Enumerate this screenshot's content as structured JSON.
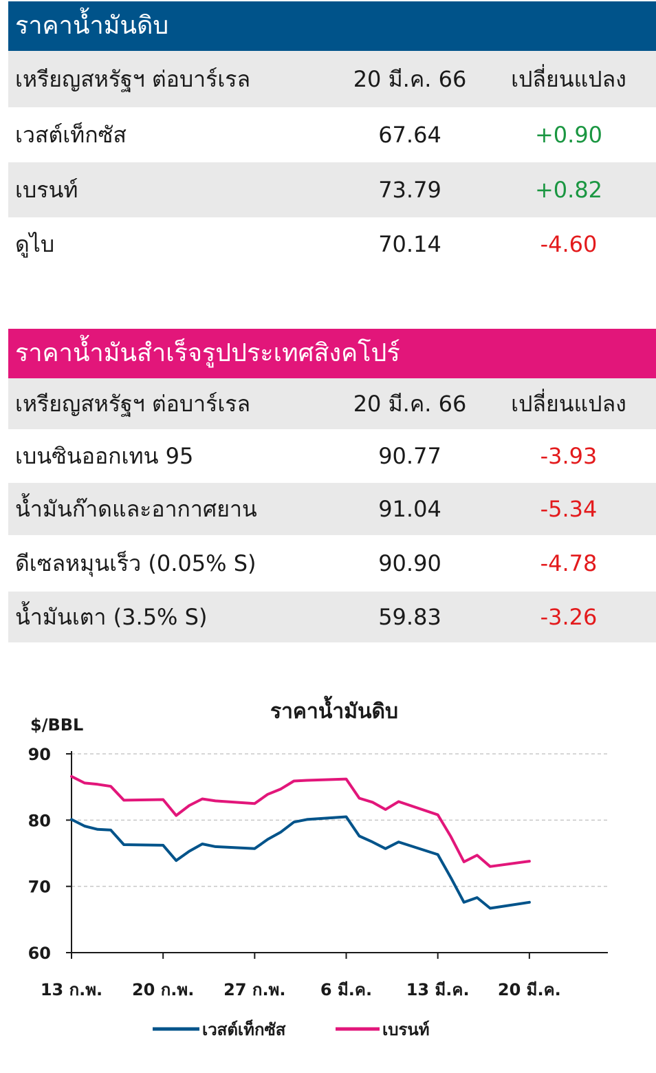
{
  "crude": {
    "title": "ราคาน้ำมันดิบ",
    "header": {
      "unit": "เหรียญสหรัฐฯ ต่อบาร์เรล",
      "date": "20 มี.ค. 66",
      "change": "เปลี่ยนแปลง"
    },
    "rows": [
      {
        "name": "เวสต์เท็กซัส",
        "price": "67.64",
        "change": "+0.90"
      },
      {
        "name": "เบรนท์",
        "price": "73.79",
        "change": "+0.82"
      },
      {
        "name": "ดูไบ",
        "price": "70.14",
        "change": "-4.60"
      }
    ]
  },
  "products": {
    "title": "ราคาน้ำมันสำเร็จรูปประเทศสิงคโปร์",
    "header": {
      "unit": "เหรียญสหรัฐฯ ต่อบาร์เรล",
      "date": "20 มี.ค. 66",
      "change": "เปลี่ยนแปลง"
    },
    "rows": [
      {
        "name": "เบนซินออกเทน 95",
        "price": "90.77",
        "change": "-3.93"
      },
      {
        "name": "น้ำมันก๊าดและอากาศยาน",
        "price": "91.04",
        "change": "-5.34"
      },
      {
        "name": "ดีเซลหมุนเร็ว (0.05% S)",
        "price": "90.90",
        "change": "-4.78"
      },
      {
        "name": "น้ำมันเตา (3.5% S)",
        "price": "59.83",
        "change": "-3.26"
      }
    ]
  },
  "colors": {
    "crude_banner": "#00538a",
    "products_banner": "#e2167a",
    "positive": "#1a9641",
    "negative": "#e31a1c"
  },
  "chart_data": {
    "type": "line",
    "title": "ราคาน้ำมันดิบ",
    "ylabel": "$/BBL",
    "ylim": [
      60,
      90
    ],
    "yticks": [
      60,
      70,
      80,
      90
    ],
    "xlim": [
      "2023-02-13",
      "2023-03-26"
    ],
    "xticks": [
      {
        "date": "2023-02-13",
        "label": "13 ก.พ."
      },
      {
        "date": "2023-02-20",
        "label": "20 ก.พ."
      },
      {
        "date": "2023-02-27",
        "label": "27 ก.พ."
      },
      {
        "date": "2023-03-06",
        "label": "6 มี.ค."
      },
      {
        "date": "2023-03-13",
        "label": "13 มี.ค."
      },
      {
        "date": "2023-03-20",
        "label": "20 มี.ค."
      }
    ],
    "grid": "horizontal dashed",
    "legend": "bottom",
    "x": [
      "2023-02-13",
      "2023-02-14",
      "2023-02-15",
      "2023-02-16",
      "2023-02-17",
      "2023-02-20",
      "2023-02-21",
      "2023-02-22",
      "2023-02-23",
      "2023-02-24",
      "2023-02-27",
      "2023-02-28",
      "2023-03-01",
      "2023-03-02",
      "2023-03-03",
      "2023-03-06",
      "2023-03-07",
      "2023-03-08",
      "2023-03-09",
      "2023-03-10",
      "2023-03-13",
      "2023-03-14",
      "2023-03-15",
      "2023-03-16",
      "2023-03-17",
      "2023-03-20"
    ],
    "series": [
      {
        "name": "เวสต์เท็กซัส",
        "color": "#00538a",
        "values": [
          80.1,
          79.1,
          78.6,
          78.5,
          76.3,
          76.2,
          73.9,
          75.3,
          76.4,
          76.0,
          75.7,
          77.1,
          78.2,
          79.7,
          80.1,
          80.5,
          77.6,
          76.7,
          75.7,
          76.7,
          74.8,
          71.3,
          67.6,
          68.3,
          66.7,
          67.6
        ]
      },
      {
        "name": "เบรนท์",
        "color": "#e2167a",
        "values": [
          86.6,
          85.6,
          85.4,
          85.1,
          83.0,
          83.1,
          80.7,
          82.2,
          83.2,
          82.9,
          82.5,
          83.9,
          84.7,
          85.9,
          86.0,
          86.2,
          83.3,
          82.7,
          81.6,
          82.8,
          80.8,
          77.5,
          73.7,
          74.7,
          73.0,
          73.8
        ]
      }
    ]
  }
}
